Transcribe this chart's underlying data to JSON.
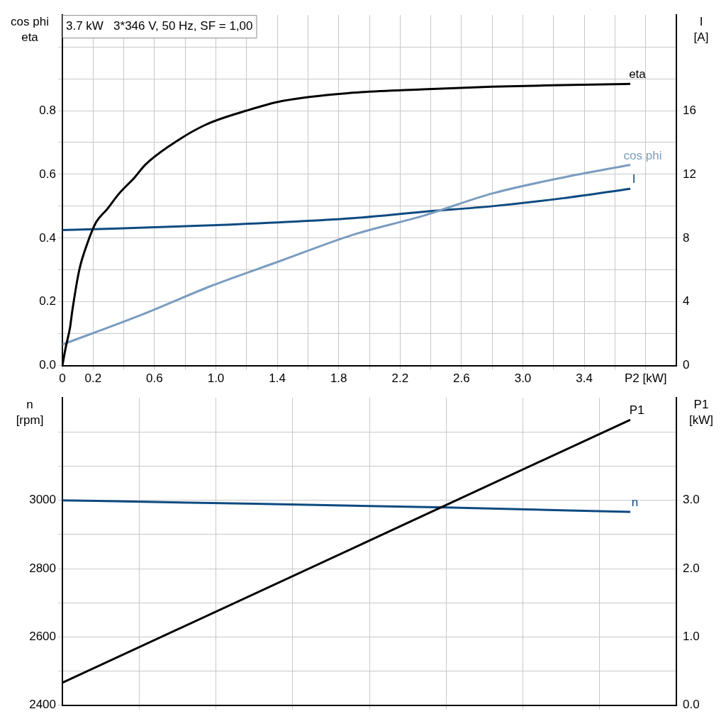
{
  "chart_data": [
    {
      "type": "line",
      "title": "3.7 kW   3*346 V, 50 Hz, SF = 1,00",
      "ylabel": "cos phi\neta",
      "y2label": "I\n[A]",
      "xlim": [
        0,
        4
      ],
      "xticks": [
        0,
        0.2,
        {
          "value": 0.4,
          "label": null
        },
        0.6,
        {
          "value": 0.8,
          "label": null
        },
        {
          "value": 1,
          "label": "1.0"
        },
        {
          "value": 1.2,
          "label": null
        },
        1.4,
        {
          "value": 1.6,
          "label": null
        },
        1.8,
        {
          "value": 2.0,
          "label": null
        },
        2.2,
        {
          "value": 2.4,
          "label": null
        },
        2.6,
        {
          "value": 2.8,
          "label": null
        },
        {
          "value": 3,
          "label": "3.0"
        },
        {
          "value": 3.2,
          "label": null
        },
        3.4,
        {
          "value": 3.6,
          "label": null
        },
        {
          "value": 3.8,
          "label": "P2 [kW]"
        }
      ],
      "ylim": [
        0,
        1.1
      ],
      "yticks": [
        {
          "value": 0,
          "label": "0.0"
        },
        {
          "value": 0.1,
          "label": null
        },
        0.2,
        {
          "value": 0.3,
          "label": null
        },
        0.4,
        {
          "value": 0.5,
          "label": null
        },
        0.6,
        {
          "value": 0.7,
          "label": null
        },
        0.8,
        {
          "value": 0.9,
          "label": null
        },
        {
          "value": 1.0,
          "label": null
        }
      ],
      "y2lim": [
        0,
        22
      ],
      "y2ticks": [
        0,
        4,
        8,
        12,
        16
      ],
      "grid": true,
      "legend": false,
      "marker": "none",
      "line_style": "solid",
      "series": [
        {
          "name": "eta",
          "color": "#000000",
          "x": [
            0,
            0.023,
            0.05,
            0.064,
            0.11,
            0.16,
            0.22,
            0.29,
            0.37,
            0.47,
            0.54,
            0.7,
            0.93,
            1.2,
            1.43,
            1.89,
            2.35,
            2.8,
            3.26,
            3.7
          ],
          "values": [
            0,
            0.06,
            0.12,
            0.17,
            0.3,
            0.38,
            0.45,
            0.49,
            0.54,
            0.59,
            0.63,
            0.69,
            0.755,
            0.8,
            0.83,
            0.856,
            0.867,
            0.875,
            0.88,
            0.884
          ]
        },
        {
          "name": "cos phi",
          "color": "#7a9cbf",
          "x": [
            0,
            0.52,
            0.97,
            1.43,
            1.89,
            2.35,
            2.8,
            3.26,
            3.7
          ],
          "values": [
            0.066,
            0.16,
            0.25,
            0.33,
            0.41,
            0.47,
            0.54,
            0.59,
            0.63
          ]
        },
        {
          "name": "I",
          "color": "#0d4a80",
          "axis": "y2",
          "x": [
            0,
            0.97,
            1.89,
            2.35,
            2.8,
            3.26,
            3.7
          ],
          "values": [
            8.5,
            8.8,
            9.25,
            9.65,
            10.0,
            10.5,
            11.1
          ]
        }
      ]
    },
    {
      "type": "line",
      "ylabel": "n\n[rpm]",
      "y2label": "P1\n[kW]",
      "xlim": [
        0,
        4
      ],
      "xticks": [
        {
          "value": 0.5,
          "label": null
        },
        {
          "value": 1.0,
          "label": null
        },
        {
          "value": 1.5,
          "label": null
        },
        {
          "value": 2.0,
          "label": null
        },
        {
          "value": 2.5,
          "label": null
        },
        {
          "value": 3.0,
          "label": null
        },
        {
          "value": 3.5,
          "label": null
        }
      ],
      "ylim": [
        2400,
        3300
      ],
      "yticks": [
        2400,
        {
          "value": 2500,
          "label": null
        },
        2600,
        {
          "value": 2700,
          "label": null
        },
        2800,
        {
          "value": 2900,
          "label": null
        },
        3000,
        {
          "value": 3100,
          "label": null
        },
        {
          "value": 3200,
          "label": null
        }
      ],
      "y2lim": [
        0,
        4.5
      ],
      "y2ticks": [
        {
          "value": 0,
          "label": "0.0"
        },
        {
          "value": 1,
          "label": "1.0"
        },
        {
          "value": 2,
          "label": "2.0"
        },
        {
          "value": 3,
          "label": "3.0"
        }
      ],
      "grid": true,
      "legend": false,
      "marker": "none",
      "line_style": "solid",
      "tick_labels": "y",
      "series": [
        {
          "name": "P1",
          "color": "#000000",
          "axis": "y2",
          "x": [
            0,
            3.7
          ],
          "values": [
            0.33,
            4.18
          ]
        },
        {
          "name": "n",
          "color": "#0d4a80",
          "x": [
            0,
            1.25,
            2.5,
            3.7
          ],
          "values": [
            3000,
            2990,
            2979,
            2966
          ]
        }
      ]
    }
  ]
}
